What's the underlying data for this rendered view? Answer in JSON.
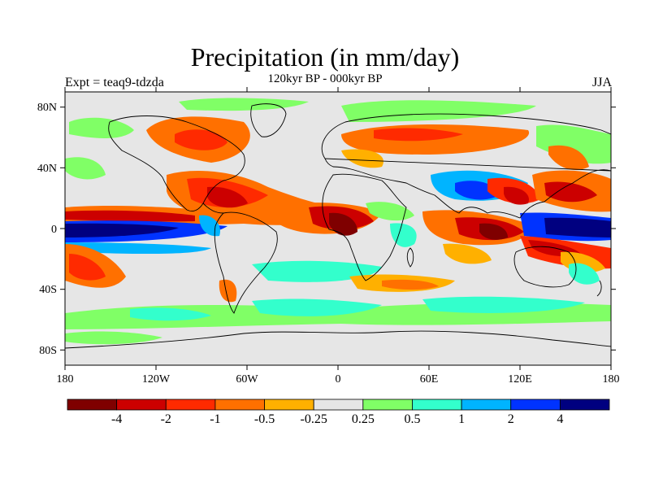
{
  "figure": {
    "title": "Precipitation (in mm/day)",
    "subtitle": "120kyr BP - 000kyr BP",
    "left_label": "Expt = teaq9-tdzda",
    "right_label": "JJA"
  },
  "axes": {
    "lat_ticks": [
      "80N",
      "40N",
      "0",
      "40S",
      "80S"
    ],
    "lon_ticks": [
      "180",
      "120W",
      "60W",
      "0",
      "60E",
      "120E",
      "180"
    ]
  },
  "colorbar": {
    "labels": [
      "-4",
      "-2",
      "-1",
      "-0.5",
      "-0.25",
      "0.25",
      "0.5",
      "1",
      "2",
      "4"
    ],
    "colors": [
      "#7f0000",
      "#cc0000",
      "#ff2a00",
      "#ff7000",
      "#ffb000",
      "#e6e6e6",
      "#80ff66",
      "#33ffcc",
      "#00b4ff",
      "#0033ff",
      "#000080"
    ]
  },
  "chart_data": {
    "type": "heatmap",
    "title": "Precipitation (in mm/day)",
    "subtitle": "120kyr BP - 000kyr BP",
    "season": "JJA",
    "experiment": "Expt = teaq9-tdzda",
    "x_range": [
      -180,
      180
    ],
    "y_range": [
      -90,
      90
    ],
    "levels": [
      -4,
      -2,
      -1,
      -0.5,
      -0.25,
      0.25,
      0.5,
      1,
      2,
      4
    ],
    "colors": [
      "#7f0000",
      "#cc0000",
      "#ff2a00",
      "#ff7000",
      "#ffb000",
      "#e6e6e6",
      "#80ff66",
      "#33ffcc",
      "#00b4ff",
      "#0033ff",
      "#000080"
    ]
  }
}
